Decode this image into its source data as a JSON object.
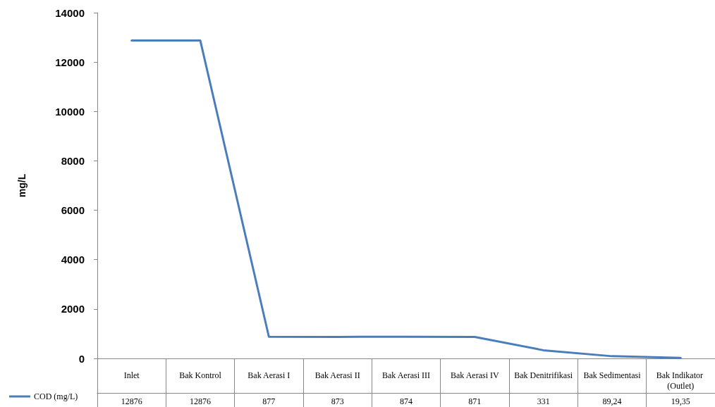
{
  "chart_data": {
    "type": "line",
    "ylabel": "mg/L",
    "categories": [
      "Inlet",
      "Bak Kontrol",
      "Bak Aerasi I",
      "Bak Aerasi II",
      "Bak Aerasi III",
      "Bak Aerasi IV",
      "Bak Denitrifikasi",
      "Bak Sedimentasi",
      "Bak Indikator (Outlet)"
    ],
    "series": [
      {
        "name": "COD (mg/L)",
        "color": "#4a7ebb",
        "values": [
          12876,
          12876,
          877,
          873,
          874,
          871,
          331,
          89.24,
          19.35
        ],
        "value_labels": [
          "12876",
          "12876",
          "877",
          "873",
          "874",
          "871",
          "331",
          "89,24",
          "19,35"
        ]
      }
    ],
    "ylim": [
      0,
      14000
    ],
    "yticks": [
      0,
      2000,
      4000,
      6000,
      8000,
      10000,
      12000,
      14000
    ],
    "grid": false,
    "legend": "bottom left",
    "marker": "none",
    "line_style": "solid"
  }
}
